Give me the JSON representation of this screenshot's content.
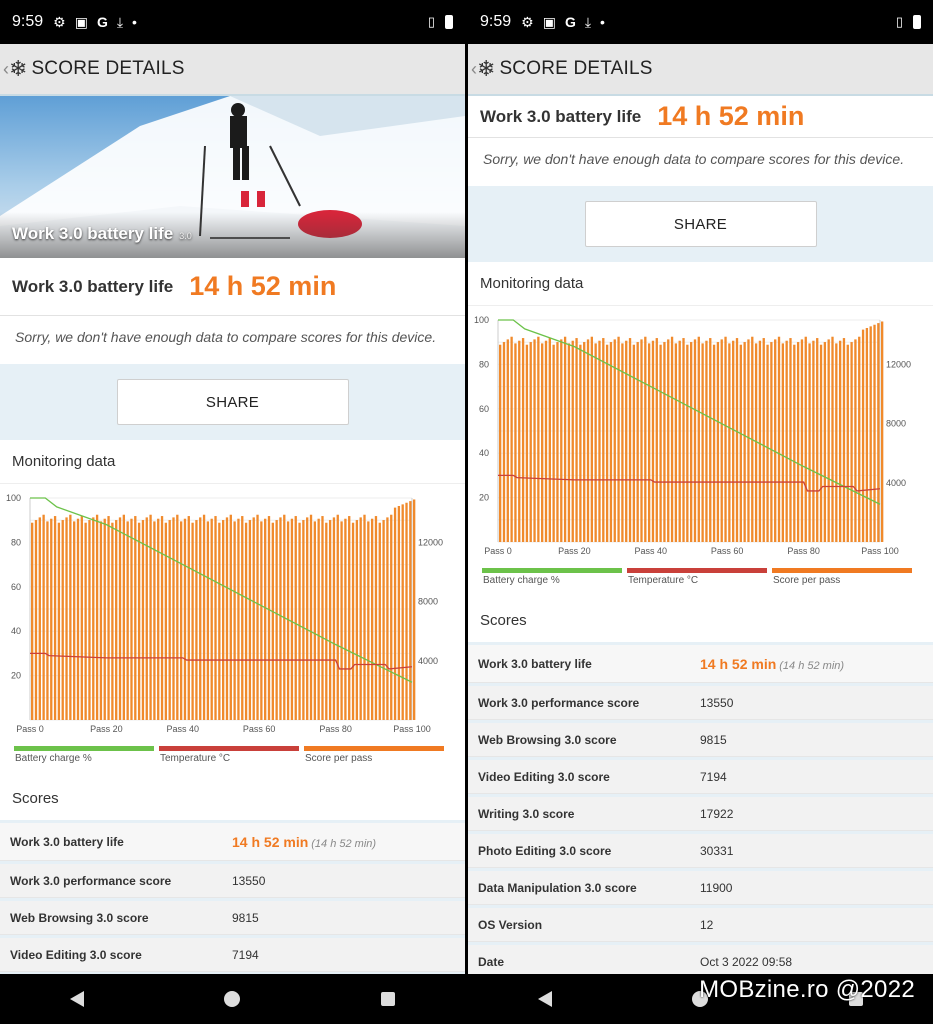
{
  "status": {
    "time": "9:59"
  },
  "header": {
    "title": "SCORE DETAILS"
  },
  "hero": {
    "title": "Work 3.0 battery life",
    "version": "3.0"
  },
  "result": {
    "label": "Work 3.0 battery life",
    "value": "14 h 52 min"
  },
  "compare_note": "Sorry, we don't have enough data to compare scores for this device.",
  "share_label": "SHARE",
  "monitoring": {
    "title": "Monitoring data"
  },
  "scores_title": "Scores",
  "scores": [
    {
      "name": "Work 3.0 battery life",
      "value": "14 h 52 min",
      "sub": "(14 h 52 min)"
    },
    {
      "name": "Work 3.0 performance score",
      "value": "13550"
    },
    {
      "name": "Web Browsing 3.0 score",
      "value": "9815"
    },
    {
      "name": "Video Editing 3.0 score",
      "value": "7194"
    },
    {
      "name": "Writing 3.0 score",
      "value": "17922"
    },
    {
      "name": "Photo Editing 3.0 score",
      "value": "30331"
    },
    {
      "name": "Data Manipulation 3.0 score",
      "value": "11900"
    },
    {
      "name": "OS Version",
      "value": "12"
    },
    {
      "name": "Date",
      "value": "Oct 3 2022 09:58"
    }
  ],
  "watermark": "MOBzine.ro @2022",
  "colors": {
    "accent": "#f07a22",
    "battery": "#6cc24a",
    "temperature": "#c9403a",
    "score": "#f07a22",
    "bars": "#f08a2c"
  },
  "icons": [
    "settings-gear-icon",
    "sim-icon",
    "google-icon",
    "download-icon",
    "vibrate-icon",
    "battery-icon",
    "back-chevron-icon",
    "snowflake-logo-icon",
    "nav-back-icon",
    "nav-home-icon",
    "nav-recents-icon"
  ],
  "chart_data": {
    "type": "bar",
    "legend": [
      "Battery charge %",
      "Temperature °C",
      "Score per pass"
    ],
    "legend_placement": "bottom",
    "x_ticks": [
      "Pass 0",
      "Pass 20",
      "Pass 40",
      "Pass 60",
      "Pass 80",
      "Pass 100"
    ],
    "y_left_ticks": [
      "100",
      "80",
      "60",
      "40",
      "20"
    ],
    "y_right_ticks": [
      "12000",
      "8000",
      "4000"
    ],
    "y_left_range": [
      0,
      100
    ],
    "y_right_range": [
      0,
      15000
    ],
    "passes": 101,
    "score_per_pass_typical": 13600,
    "score_per_pass_end": 14900,
    "series": [
      {
        "name": "Battery charge %",
        "x": [
          0,
          4,
          7,
          20,
          40,
          60,
          80,
          100
        ],
        "y": [
          100,
          100,
          96,
          88,
          70,
          52,
          34,
          17
        ]
      },
      {
        "name": "Temperature °C",
        "x": [
          0,
          4,
          5,
          20,
          40,
          41,
          80,
          81,
          84,
          85,
          93,
          94,
          100
        ],
        "y": [
          30,
          30,
          29,
          28,
          28,
          27,
          27,
          23,
          23,
          25,
          25,
          23,
          24
        ]
      }
    ]
  }
}
